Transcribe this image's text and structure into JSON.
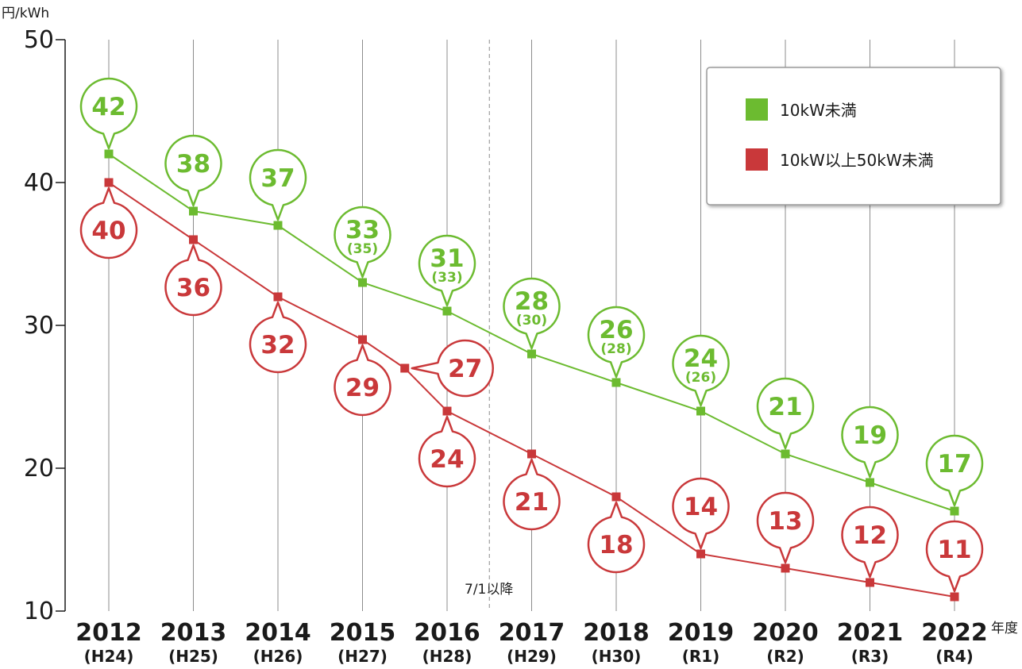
{
  "chart_data": {
    "type": "line",
    "ylabel": "円/kWh",
    "xlabel": "年度",
    "ylim": [
      10,
      50
    ],
    "yticks": [
      "10",
      "20",
      "30",
      "40",
      "50"
    ],
    "grid": "vertical",
    "categories": [
      "2012",
      "2013",
      "2014",
      "2015",
      "2016",
      "2017",
      "2018",
      "2019",
      "2020",
      "2021",
      "2022"
    ],
    "era_labels": [
      "(H24)",
      "(H25)",
      "(H26)",
      "(H27)",
      "(H28)",
      "(H29)",
      "(H30)",
      "(R1)",
      "(R2)",
      "(R3)",
      "(R4)"
    ],
    "divider_annotation": "7/1以降",
    "legend_position": "top-right",
    "series": [
      {
        "name": "10kW未満",
        "color": "#6cbb30",
        "points": [
          {
            "x": 2012,
            "y": 42,
            "label": "42",
            "sub": ""
          },
          {
            "x": 2013,
            "y": 38,
            "label": "38",
            "sub": ""
          },
          {
            "x": 2014,
            "y": 37,
            "label": "37",
            "sub": ""
          },
          {
            "x": 2015,
            "y": 33,
            "label": "33",
            "sub": "(35)"
          },
          {
            "x": 2016,
            "y": 31,
            "label": "31",
            "sub": "(33)"
          },
          {
            "x": 2017,
            "y": 28,
            "label": "28",
            "sub": "(30)"
          },
          {
            "x": 2018,
            "y": 26,
            "label": "26",
            "sub": "(28)"
          },
          {
            "x": 2019,
            "y": 24,
            "label": "24",
            "sub": "(26)"
          },
          {
            "x": 2020,
            "y": 21,
            "label": "21",
            "sub": ""
          },
          {
            "x": 2021,
            "y": 19,
            "label": "19",
            "sub": ""
          },
          {
            "x": 2022,
            "y": 17,
            "label": "17",
            "sub": ""
          }
        ]
      },
      {
        "name": "10kW以上50kW未満",
        "color": "#c9383a",
        "points": [
          {
            "x": 2012,
            "y": 40,
            "label": "40",
            "sub": ""
          },
          {
            "x": 2013,
            "y": 36,
            "label": "36",
            "sub": ""
          },
          {
            "x": 2014,
            "y": 32,
            "label": "32",
            "sub": ""
          },
          {
            "x": 2015,
            "y": 29,
            "label": "29",
            "sub": ""
          },
          {
            "x": 2015.5,
            "y": 27,
            "label": "27",
            "sub": ""
          },
          {
            "x": 2016,
            "y": 24,
            "label": "24",
            "sub": ""
          },
          {
            "x": 2017,
            "y": 21,
            "label": "21",
            "sub": ""
          },
          {
            "x": 2018,
            "y": 18,
            "label": "18",
            "sub": ""
          },
          {
            "x": 2019,
            "y": 14,
            "label": "14",
            "sub": ""
          },
          {
            "x": 2020,
            "y": 13,
            "label": "13",
            "sub": ""
          },
          {
            "x": 2021,
            "y": 12,
            "label": "12",
            "sub": ""
          },
          {
            "x": 2022,
            "y": 11,
            "label": "11",
            "sub": ""
          }
        ]
      }
    ]
  }
}
